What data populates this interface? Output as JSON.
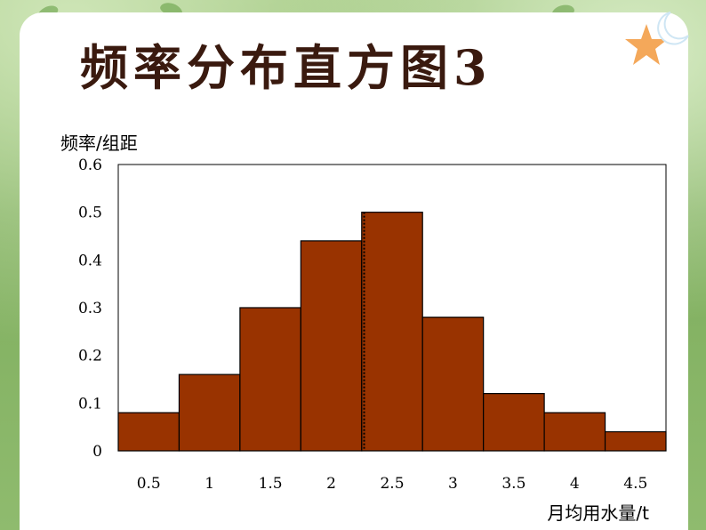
{
  "slide": {
    "title": "频率分布直方图3"
  },
  "colors": {
    "bar_fill": "#993300",
    "bar_stroke": "#000000",
    "title_color": "#3a1a0f",
    "star_color": "#f4a85a"
  },
  "icons": {
    "star": "star-icon",
    "moon": "moon-icon"
  },
  "chart_data": {
    "type": "bar",
    "ylabel": "频率/组距",
    "xlabel": "月均用水量/t",
    "ylim": [
      0,
      0.6
    ],
    "yticks": [
      "0",
      "0.1",
      "0.2",
      "0.3",
      "0.4",
      "0.5",
      "0.6"
    ],
    "xlim": [
      0,
      4.5
    ],
    "xticks": [
      "0.5",
      "1",
      "1.5",
      "2",
      "2.5",
      "3",
      "3.5",
      "4",
      "4.5"
    ],
    "bin_width": 0.5,
    "categories": [
      "0-0.5",
      "0.5-1",
      "1-1.5",
      "1.5-2",
      "2-2.5",
      "2.5-3",
      "3-3.5",
      "3.5-4",
      "4-4.5"
    ],
    "values": [
      0.08,
      0.16,
      0.3,
      0.44,
      0.5,
      0.28,
      0.12,
      0.08,
      0.04
    ],
    "median_marker": 2.02,
    "grid": false
  }
}
